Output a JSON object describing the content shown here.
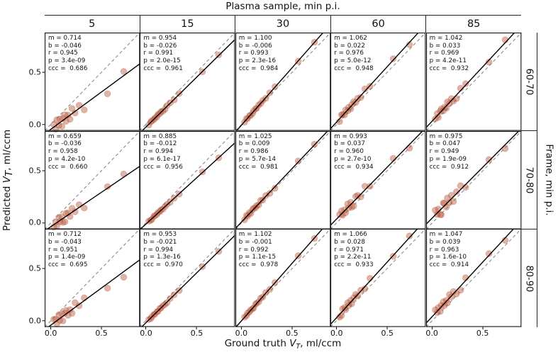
{
  "title": "Plasma sample, min p.i.",
  "right_axis_title": "Frame, min p.i.",
  "xlabel": {
    "pre": "Ground truth ",
    "var": "V",
    "sub": "T",
    "post": ", ml/ccm"
  },
  "ylabel": {
    "pre": "Predicted ",
    "var": "V",
    "sub": "T",
    "post": ", ml/ccm"
  },
  "chart_data": {
    "type": "scatter",
    "grid": {
      "cols": [
        "5",
        "15",
        "30",
        "60",
        "85"
      ],
      "rows": [
        "60-70",
        "70-80",
        "80-90"
      ]
    },
    "xlim": [
      -0.06,
      0.88
    ],
    "ylim": [
      -0.06,
      0.88
    ],
    "ticks": [
      0.0,
      0.5
    ],
    "tick_labels": [
      "0.0",
      "0.5"
    ],
    "identity_line": "dashed-gray",
    "regression_line": "solid-black",
    "point_color": "#bb5a3f",
    "x_values": [
      0.03,
      0.05,
      0.06,
      0.08,
      0.09,
      0.11,
      0.12,
      0.14,
      0.15,
      0.17,
      0.19,
      0.21,
      0.24,
      0.28,
      0.33,
      0.56,
      0.72
    ],
    "jitter": [
      0.5,
      -0.7,
      1.0,
      -0.4,
      0.7,
      -1.0,
      0.4,
      0.8,
      -0.6,
      0.3,
      -0.8,
      1.0,
      -0.3,
      0.6,
      -1.0,
      -1.2,
      0.8
    ],
    "panels": [
      {
        "row": "60-70",
        "col": "5",
        "m": "0.714",
        "b": "-0.046",
        "r": "0.945",
        "p": "3.4e-09",
        "ccc": "0.686"
      },
      {
        "row": "60-70",
        "col": "15",
        "m": "0.954",
        "b": "-0.026",
        "r": "0.991",
        "p": "2.0e-15",
        "ccc": "0.961"
      },
      {
        "row": "60-70",
        "col": "30",
        "m": "1.100",
        "b": "-0.006",
        "r": "0.993",
        "p": "2.3e-16",
        "ccc": "0.984"
      },
      {
        "row": "60-70",
        "col": "60",
        "m": "1.062",
        "b": "0.022",
        "r": "0.976",
        "p": "5.0e-12",
        "ccc": "0.948"
      },
      {
        "row": "60-70",
        "col": "85",
        "m": "1.042",
        "b": "0.033",
        "r": "0.969",
        "p": "4.2e-11",
        "ccc": "0.932"
      },
      {
        "row": "70-80",
        "col": "5",
        "m": "0.659",
        "b": "-0.036",
        "r": "0.958",
        "p": "4.2e-10",
        "ccc": "0.660"
      },
      {
        "row": "70-80",
        "col": "15",
        "m": "0.885",
        "b": "-0.012",
        "r": "0.994",
        "p": "6.1e-17",
        "ccc": "0.956"
      },
      {
        "row": "70-80",
        "col": "30",
        "m": "1.025",
        "b": "0.009",
        "r": "0.986",
        "p": "5.7e-14",
        "ccc": "0.981"
      },
      {
        "row": "70-80",
        "col": "60",
        "m": "0.993",
        "b": "0.037",
        "r": "0.960",
        "p": "2.7e-10",
        "ccc": "0.934"
      },
      {
        "row": "70-80",
        "col": "85",
        "m": "0.975",
        "b": "0.047",
        "r": "0.949",
        "p": "1.9e-09",
        "ccc": "0.912"
      },
      {
        "row": "80-90",
        "col": "5",
        "m": "0.712",
        "b": "-0.043",
        "r": "0.951",
        "p": "1.4e-09",
        "ccc": "0.695"
      },
      {
        "row": "80-90",
        "col": "15",
        "m": "0.953",
        "b": "-0.021",
        "r": "0.994",
        "p": "1.3e-16",
        "ccc": "0.970"
      },
      {
        "row": "80-90",
        "col": "30",
        "m": "1.102",
        "b": "-0.001",
        "r": "0.992",
        "p": "1.1e-15",
        "ccc": "0.978"
      },
      {
        "row": "80-90",
        "col": "60",
        "m": "1.066",
        "b": "0.028",
        "r": "0.971",
        "p": "2.2e-11",
        "ccc": "0.933"
      },
      {
        "row": "80-90",
        "col": "85",
        "m": "1.047",
        "b": "0.039",
        "r": "0.963",
        "p": "1.6e-10",
        "ccc": "0.914"
      }
    ]
  }
}
